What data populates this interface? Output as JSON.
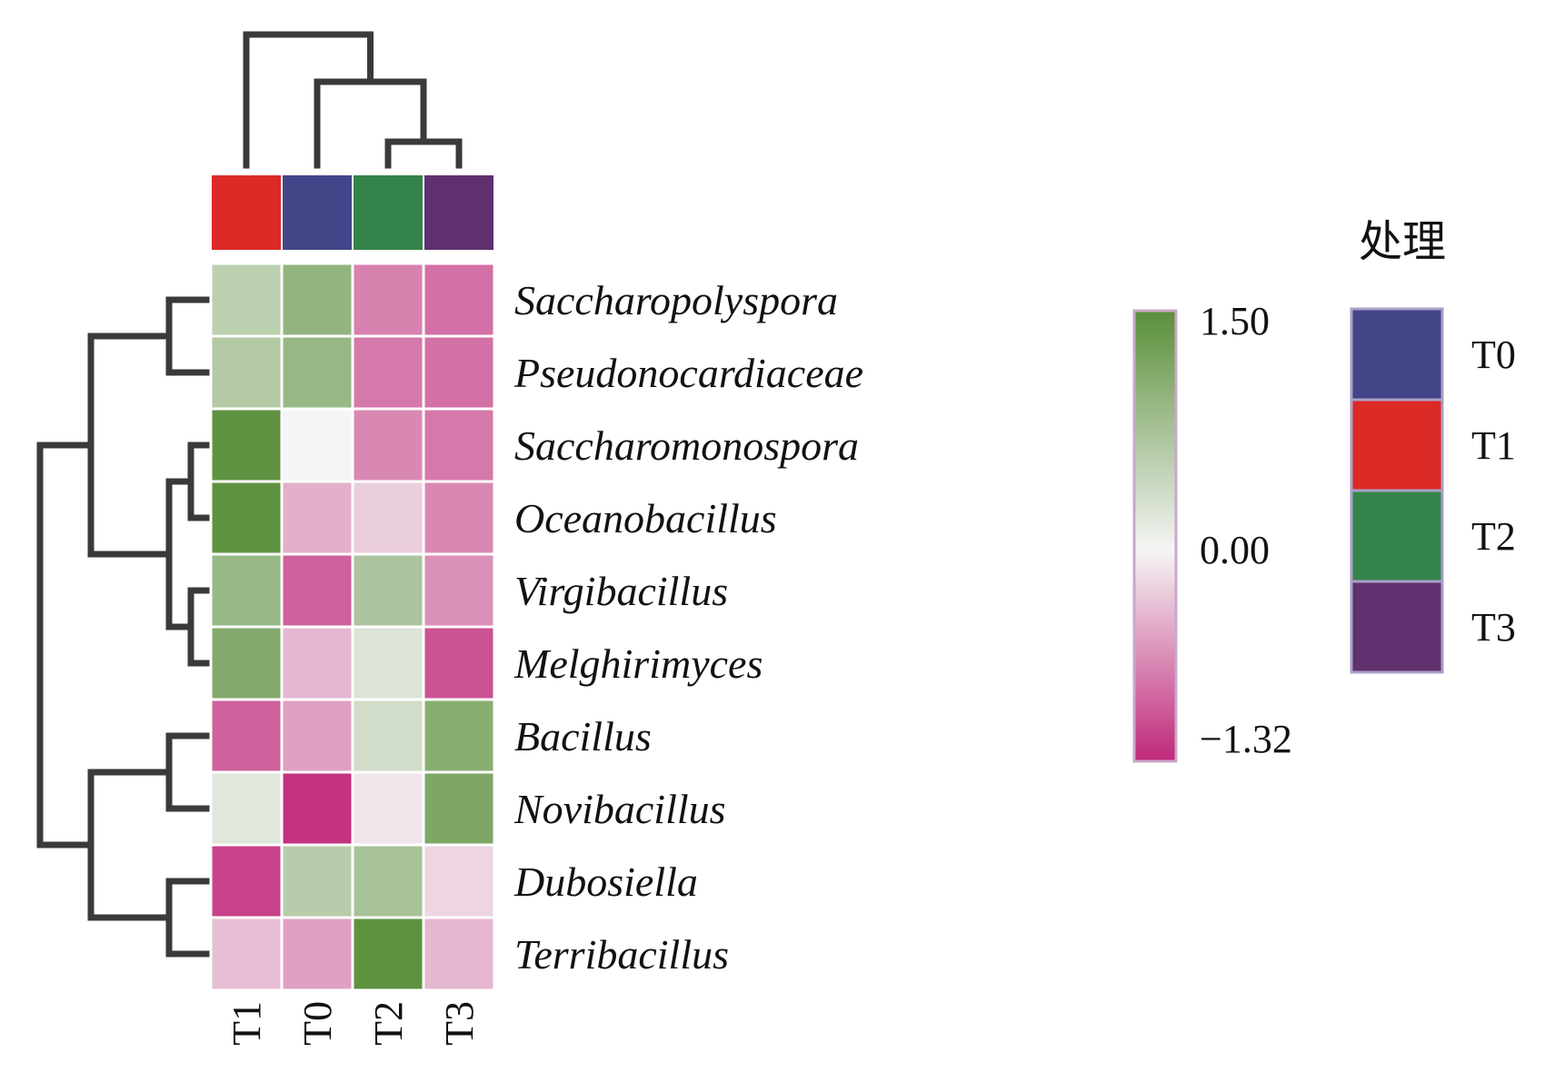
{
  "chart_data": {
    "type": "heatmap",
    "columns": [
      "T1",
      "T0",
      "T2",
      "T3"
    ],
    "rows": [
      "Saccharopolyspora",
      "Pseudonocardiaceae",
      "Saccharomonospora",
      "Oceanobacillus",
      "Virgibacillus",
      "Melghirimyces",
      "Bacillus",
      "Novibacillus",
      "Dubosiella",
      "Terribacillus"
    ],
    "values": [
      [
        0.55,
        0.95,
        -0.75,
        -0.85
      ],
      [
        0.65,
        0.9,
        -0.8,
        -0.85
      ],
      [
        1.45,
        0.0,
        -0.7,
        -0.8
      ],
      [
        1.45,
        -0.45,
        -0.25,
        -0.7
      ],
      [
        0.9,
        -0.95,
        0.7,
        -0.65
      ],
      [
        1.1,
        -0.4,
        0.25,
        -1.05
      ],
      [
        -0.95,
        -0.55,
        0.35,
        1.05
      ],
      [
        0.2,
        -1.25,
        -0.1,
        1.15
      ],
      [
        -1.15,
        0.6,
        0.75,
        -0.2
      ],
      [
        -0.35,
        -0.55,
        1.45,
        -0.4
      ]
    ],
    "color_scale": {
      "min": -1.32,
      "mid": 0.0,
      "max": 1.5,
      "colors": [
        "#c0287a",
        "#f5f5f5",
        "#5a8f3a"
      ],
      "tick_labels": [
        "1.50",
        "0.00",
        "−1.32"
      ]
    },
    "column_annotation": {
      "title": "处理",
      "column_groups": [
        "T1",
        "T0",
        "T2",
        "T3"
      ],
      "legend": [
        {
          "label": "T0",
          "color": "#434589"
        },
        {
          "label": "T1",
          "color": "#dc2a26"
        },
        {
          "label": "T2",
          "color": "#34834a"
        },
        {
          "label": "T3",
          "color": "#60306f"
        }
      ]
    },
    "column_dendrogram": "((T1,(T0,(T2,T3))))",
    "row_dendrogram": "(((Saccharopolyspora,Pseudonocardiaceae),((Saccharomonospora,Oceanobacillus),(Virgibacillus,Melghirimyces))),((Bacillus,Novibacillus),(Dubosiella,Terribacillus)))"
  }
}
